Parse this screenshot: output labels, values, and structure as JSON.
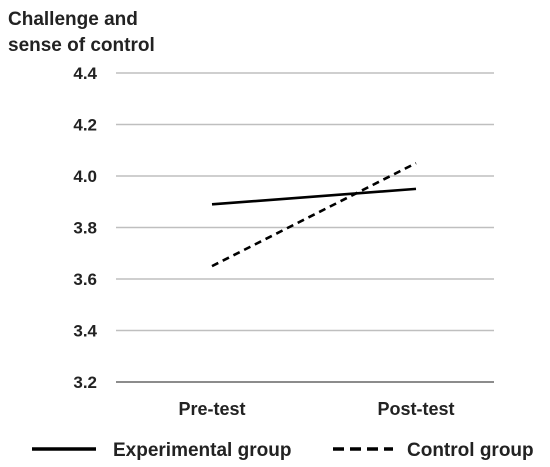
{
  "chart_data": {
    "type": "line",
    "categories": [
      "Pre-test",
      "Post-test"
    ],
    "ylabel_lines": [
      "Challenge and",
      "sense of control"
    ],
    "ylim": [
      3.2,
      4.4
    ],
    "yticks": [
      "3.2",
      "3.4",
      "3.6",
      "3.8",
      "4.0",
      "4.2",
      "4.4"
    ],
    "grid": true,
    "legend_position": "bottom",
    "series": [
      {
        "name": "Experimental group",
        "values": [
          3.89,
          3.95
        ],
        "style": "solid",
        "color": "#000000"
      },
      {
        "name": "Control group",
        "values": [
          3.65,
          4.05
        ],
        "style": "dashed",
        "color": "#000000"
      }
    ]
  }
}
